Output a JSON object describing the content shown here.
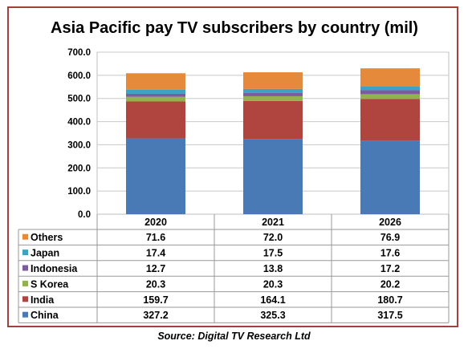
{
  "chart_data": {
    "type": "bar",
    "stacked": true,
    "title": "Asia Pacific pay TV subscribers by country (mil)",
    "categories": [
      "2020",
      "2021",
      "2026"
    ],
    "ylim": [
      0,
      700
    ],
    "yticks": [
      "0.0",
      "100.0",
      "200.0",
      "300.0",
      "400.0",
      "500.0",
      "600.0",
      "700.0"
    ],
    "grid": true,
    "legend": "data-table-below",
    "series": [
      {
        "name": "China",
        "color": "#4a7ab5",
        "values": [
          327.2,
          325.3,
          317.5
        ],
        "labels": [
          "327.2",
          "325.3",
          "317.5"
        ]
      },
      {
        "name": "India",
        "color": "#b04540",
        "values": [
          159.7,
          164.1,
          180.7
        ],
        "labels": [
          "159.7",
          "164.1",
          "180.7"
        ]
      },
      {
        "name": "S Korea",
        "color": "#93b150",
        "values": [
          20.3,
          20.3,
          20.2
        ],
        "labels": [
          "20.3",
          "20.3",
          "20.2"
        ]
      },
      {
        "name": "Indonesia",
        "color": "#7b5ca0",
        "values": [
          12.7,
          13.8,
          17.2
        ],
        "labels": [
          "12.7",
          "13.8",
          "17.2"
        ]
      },
      {
        "name": "Japan",
        "color": "#3fa2c2",
        "values": [
          17.4,
          17.5,
          17.6
        ],
        "labels": [
          "17.4",
          "17.5",
          "17.6"
        ]
      },
      {
        "name": "Others",
        "color": "#e58a3a",
        "values": [
          71.6,
          72.0,
          76.9
        ],
        "labels": [
          "71.6",
          "72.0",
          "76.9"
        ]
      }
    ]
  },
  "source": "Source: Digital TV Research Ltd"
}
